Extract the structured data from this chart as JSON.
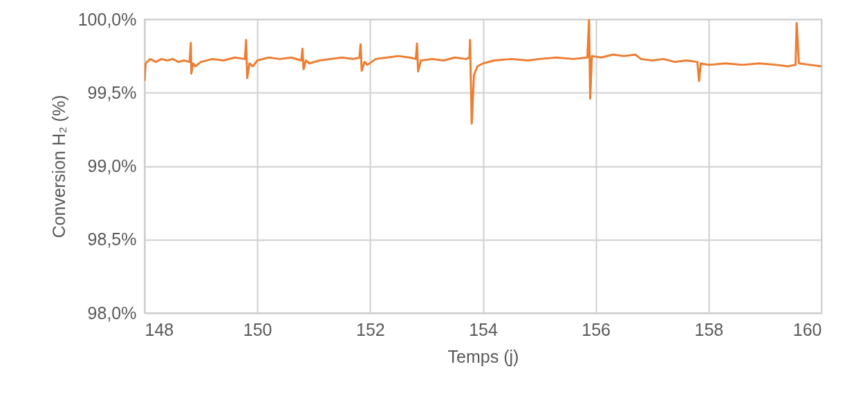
{
  "chart_data": {
    "type": "line",
    "xlabel": "Temps (j)",
    "ylabel": "Conversion H₂ (%)",
    "xlim": [
      148,
      160
    ],
    "xticks": [
      148,
      150,
      152,
      154,
      156,
      158,
      160
    ],
    "ylim": [
      98,
      100
    ],
    "yticks": [
      {
        "value": 98,
        "label": "98,0%"
      },
      {
        "value": 98.5,
        "label": "98,5%"
      },
      {
        "value": 99,
        "label": "99,0%"
      },
      {
        "value": 99.5,
        "label": "99,5%"
      },
      {
        "value": 100,
        "label": "100,0%"
      }
    ],
    "grid": true,
    "marker": "none",
    "line_style": "solid",
    "x": [
      148.0,
      148.02,
      148.1,
      148.2,
      148.3,
      148.4,
      148.5,
      148.6,
      148.7,
      148.8,
      148.82,
      148.83,
      148.86,
      148.9,
      149.0,
      149.2,
      149.4,
      149.6,
      149.78,
      149.8,
      149.82,
      149.86,
      149.92,
      150.0,
      150.2,
      150.4,
      150.6,
      150.78,
      150.8,
      150.82,
      150.86,
      150.92,
      151.1,
      151.3,
      151.5,
      151.7,
      151.81,
      151.83,
      151.85,
      151.9,
      151.95,
      152.1,
      152.3,
      152.5,
      152.7,
      152.81,
      152.83,
      152.85,
      152.9,
      153.1,
      153.3,
      153.5,
      153.7,
      153.76,
      153.77,
      153.8,
      153.84,
      153.9,
      154.0,
      154.2,
      154.5,
      154.8,
      155.0,
      155.3,
      155.6,
      155.85,
      155.88,
      155.9,
      155.93,
      156.1,
      156.3,
      156.5,
      156.7,
      156.8,
      157.0,
      157.2,
      157.4,
      157.6,
      157.8,
      157.83,
      157.86,
      158.0,
      158.3,
      158.6,
      158.9,
      159.2,
      159.4,
      159.54,
      159.56,
      159.6,
      159.8,
      160.0
    ],
    "series": [
      {
        "color": "#ed7d31",
        "values": [
          99.58,
          99.7,
          99.73,
          99.71,
          99.73,
          99.72,
          99.73,
          99.71,
          99.72,
          99.71,
          99.84,
          99.63,
          99.7,
          99.68,
          99.71,
          99.73,
          99.72,
          99.74,
          99.73,
          99.86,
          99.6,
          99.7,
          99.68,
          99.72,
          99.74,
          99.73,
          99.74,
          99.72,
          99.8,
          99.66,
          99.72,
          99.7,
          99.72,
          99.73,
          99.74,
          99.73,
          99.74,
          99.83,
          99.65,
          99.71,
          99.69,
          99.73,
          99.74,
          99.75,
          99.74,
          99.73,
          99.835,
          99.645,
          99.72,
          99.73,
          99.72,
          99.74,
          99.73,
          99.74,
          99.86,
          99.29,
          99.62,
          99.68,
          99.7,
          99.72,
          99.73,
          99.72,
          99.73,
          99.74,
          99.73,
          99.74,
          100.0,
          99.46,
          99.75,
          99.74,
          99.76,
          99.75,
          99.76,
          99.73,
          99.72,
          99.73,
          99.71,
          99.72,
          99.71,
          99.58,
          99.7,
          99.69,
          99.7,
          99.69,
          99.7,
          99.69,
          99.68,
          99.69,
          99.975,
          99.7,
          99.69,
          99.68
        ]
      }
    ]
  }
}
